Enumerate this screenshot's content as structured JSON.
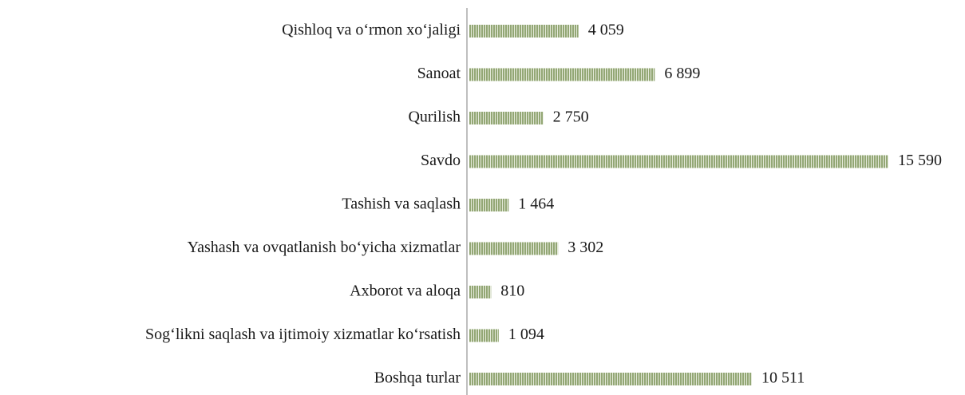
{
  "chart_data": {
    "type": "barh",
    "categories": [
      "Qishloq va o‘rmon xo‘jaligi",
      "Sanoat",
      "Qurilish",
      "Savdo ",
      "Tashish va saqlash",
      "Yashash va ovqatlanish bo‘yicha xizmatlar",
      "Axborot va aloqa",
      "Sog‘likni saqlash va ijtimoiy xizmatlar ko‘rsatish",
      "Boshqa turlar"
    ],
    "values": [
      4059,
      6899,
      2750,
      15590,
      1464,
      3302,
      810,
      1094,
      10511
    ],
    "value_labels": [
      "4 059",
      "6 899",
      "2 750",
      "15 590",
      "1 464",
      "3 302",
      "810",
      "1 094",
      "10 511"
    ],
    "color": "#93a775"
  }
}
